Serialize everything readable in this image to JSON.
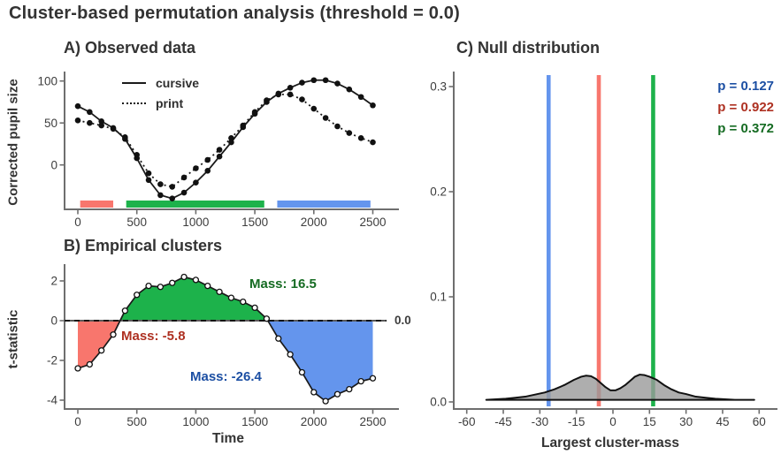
{
  "title": "Cluster-based permutation analysis (threshold = 0.0)",
  "colors": {
    "red": "#F8766D",
    "green": "#1DB24B",
    "blue": "#6495ED",
    "dark_red": "#AE3122",
    "dark_green": "#156B22",
    "dark_blue": "#1C4FA3",
    "curve": "#1a1a1a",
    "axis": "#6e6e6e",
    "density_fill": "#9a9a9a"
  },
  "panels": {
    "a": {
      "title": "A) Observed data",
      "ylabel": "Corrected pupil size",
      "legend": [
        {
          "label": "cursive",
          "style": "solid"
        },
        {
          "label": "print",
          "style": "dotted"
        }
      ]
    },
    "b": {
      "title": "B) Empirical clusters",
      "ylabel": "t-statistic",
      "xlabel": "Time",
      "threshold_label": "0.0",
      "mass_labels": [
        {
          "text": "Mass: 16.5",
          "color_key": "dark_green"
        },
        {
          "text": "Mass: -5.8",
          "color_key": "dark_red"
        },
        {
          "text": "Mass: -26.4",
          "color_key": "dark_blue"
        }
      ]
    },
    "c": {
      "title": "C) Null distribution",
      "xlabel": "Largest cluster-mass",
      "p_labels": [
        {
          "text": "p = 0.127",
          "color_key": "dark_blue"
        },
        {
          "text": "p = 0.922",
          "color_key": "dark_red"
        },
        {
          "text": "p = 0.372",
          "color_key": "dark_green"
        }
      ]
    }
  },
  "chart_data": [
    {
      "panel": "A",
      "type": "line",
      "title": "A) Observed data",
      "ylabel": "Corrected pupil size",
      "x": [
        0,
        100,
        200,
        300,
        400,
        500,
        600,
        700,
        800,
        900,
        1000,
        1100,
        1200,
        1300,
        1400,
        1500,
        1600,
        1700,
        1800,
        1900,
        2000,
        2100,
        2200,
        2300,
        2400,
        2500
      ],
      "series": [
        {
          "name": "cursive",
          "style": "solid",
          "marker": "filled-circle",
          "values": [
            70,
            63,
            52,
            44,
            31,
            8,
            -18,
            -36,
            -40,
            -33,
            -21,
            -7,
            10,
            27,
            45,
            61,
            75,
            85,
            92,
            98,
            101,
            101,
            97,
            90,
            81,
            71
          ]
        },
        {
          "name": "print",
          "style": "dotted",
          "marker": "filled-circle",
          "values": [
            53,
            50,
            47,
            43,
            33,
            12,
            -10,
            -23,
            -26,
            -15,
            -4,
            6,
            18,
            32,
            47,
            63,
            77,
            84,
            84,
            78,
            67,
            56,
            46,
            38,
            32,
            27
          ]
        }
      ],
      "xticks": [
        0,
        500,
        1000,
        1500,
        2000,
        2500
      ],
      "yticks": [
        0,
        50,
        100
      ],
      "ylim": [
        -53,
        110
      ],
      "cluster_bars": [
        {
          "color": "red",
          "from": 20,
          "to": 300
        },
        {
          "color": "green",
          "from": 410,
          "to": 1580
        },
        {
          "color": "blue",
          "from": 1690,
          "to": 2480
        }
      ]
    },
    {
      "panel": "B",
      "type": "line-area",
      "title": "B) Empirical clusters",
      "ylabel": "t-statistic",
      "xlabel": "Time",
      "threshold": 0.0,
      "x": [
        0,
        100,
        200,
        300,
        400,
        500,
        600,
        700,
        800,
        900,
        1000,
        1100,
        1200,
        1300,
        1400,
        1500,
        1600,
        1700,
        1800,
        1900,
        2000,
        2100,
        2200,
        2300,
        2400,
        2500
      ],
      "values": [
        -2.4,
        -2.2,
        -1.5,
        -0.7,
        0.5,
        1.3,
        1.75,
        1.7,
        1.9,
        2.2,
        2.05,
        1.75,
        1.45,
        1.15,
        0.95,
        0.65,
        0.1,
        -0.9,
        -1.7,
        -2.6,
        -3.6,
        -4.05,
        -3.7,
        -3.45,
        -3.05,
        -2.9
      ],
      "xticks": [
        0,
        500,
        1000,
        1500,
        2000,
        2500
      ],
      "yticks": [
        -4,
        -2,
        0,
        2
      ],
      "ylim": [
        -4.45,
        2.6
      ],
      "clusters": [
        {
          "color": "red",
          "mass": -5.8,
          "from": 0,
          "to": 358
        },
        {
          "color": "green",
          "mass": 16.5,
          "from": 358,
          "to": 1610
        },
        {
          "color": "blue",
          "mass": -26.4,
          "from": 1610,
          "to": 2500
        }
      ]
    },
    {
      "panel": "C",
      "type": "area",
      "title": "C) Null distribution",
      "xlabel": "Largest cluster-mass",
      "xticks": [
        -60,
        -45,
        -30,
        -15,
        0,
        15,
        30,
        45,
        60
      ],
      "yticks": [
        0.0,
        0.1,
        0.2,
        0.3
      ],
      "xlim": [
        -62,
        62
      ],
      "ylim": [
        0,
        0.31
      ],
      "density": {
        "x": [
          -52,
          -48,
          -44,
          -40,
          -36,
          -32,
          -28,
          -24,
          -20,
          -16,
          -13,
          -11,
          -9,
          -7,
          -5,
          -3,
          -1,
          1,
          3,
          5,
          7,
          9,
          11,
          13,
          15,
          18,
          21,
          24,
          27,
          30,
          34,
          38,
          42,
          46,
          50,
          54,
          58
        ],
        "y": [
          0.002,
          0.0025,
          0.003,
          0.004,
          0.005,
          0.007,
          0.009,
          0.012,
          0.016,
          0.021,
          0.024,
          0.025,
          0.0245,
          0.022,
          0.018,
          0.014,
          0.011,
          0.011,
          0.013,
          0.016,
          0.02,
          0.024,
          0.026,
          0.0255,
          0.024,
          0.021,
          0.016,
          0.012,
          0.009,
          0.0075,
          0.005,
          0.004,
          0.003,
          0.0025,
          0.002,
          0.002,
          0.002
        ]
      },
      "vlines": [
        {
          "x": -26.4,
          "color": "blue",
          "p": 0.127
        },
        {
          "x": -5.8,
          "color": "red",
          "p": 0.922
        },
        {
          "x": 16.5,
          "color": "green",
          "p": 0.372
        }
      ]
    }
  ]
}
